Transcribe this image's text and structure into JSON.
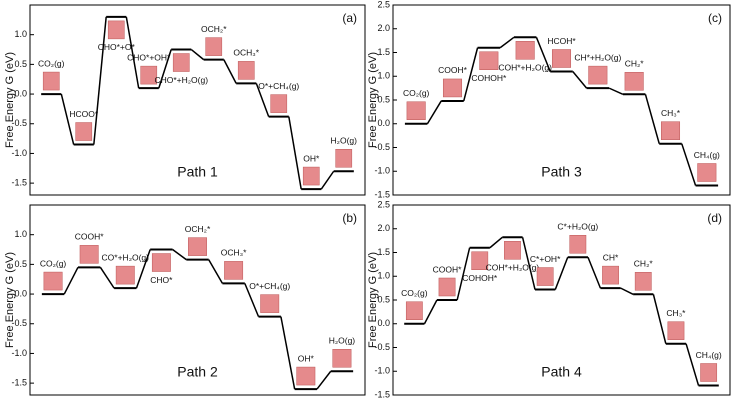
{
  "chart_data": [
    {
      "type": "line",
      "panel": "(a)",
      "annotation": "Path 1",
      "y_label": "Free Energy G (eV)",
      "color": "#000000",
      "categories": [
        "CO₂(g)",
        "HCOO*",
        "CHO*+O*",
        "CHO*+OH*",
        "CHO*+H₂O(g)",
        "OCH₂*",
        "OCH₃*",
        "O*+CH₄(g)",
        "OH*",
        "H₂O(g)"
      ],
      "values": [
        0,
        -0.85,
        1.3,
        0.1,
        0.75,
        0.58,
        0.18,
        -0.38,
        -1.6,
        -1.3
      ],
      "ylim": [
        -1.7,
        1.5
      ],
      "yticks": [
        {
          "value": 1,
          "label": "1.0"
        },
        0.5,
        {
          "value": 0,
          "label": "0.0"
        },
        -0.5,
        {
          "value": -1,
          "label": "-1.0"
        },
        -1.5
      ]
    },
    {
      "type": "line",
      "panel": "(b)",
      "annotation": "Path 2",
      "y_label": "Free Energy G (eV)",
      "color": "#000000",
      "categories": [
        "CO₂(g)",
        "COOH*",
        "CO*+H₂O(g)",
        "CHO*",
        "OCH₂*",
        "OCH₃*",
        "O*+CH₄(g)",
        "OH*",
        "H₂O(g)"
      ],
      "values": [
        0,
        0.45,
        0.1,
        0.75,
        0.58,
        0.18,
        -0.38,
        -1.6,
        -1.3
      ],
      "ylim": [
        -1.7,
        1.5
      ],
      "yticks": [
        {
          "value": 1,
          "label": "1.0"
        },
        0.5,
        {
          "value": 0,
          "label": "0.0"
        },
        -0.5,
        {
          "value": -1,
          "label": "-1.0"
        },
        -1.5
      ]
    },
    {
      "type": "line",
      "panel": "(c)",
      "annotation": "Path 3",
      "y_label": "Free Energy G (eV)",
      "color": "#000000",
      "categories": [
        "CO₂(g)",
        "COOH*",
        "COHOH*",
        "COH*+H₂O(g)",
        "HCOH*",
        "CH*+H₂O(g)",
        "CH₂*",
        "CH₃*",
        "CH₄(g)"
      ],
      "values": [
        0,
        0.48,
        1.6,
        1.82,
        1.1,
        0.75,
        0.62,
        -0.42,
        -1.3
      ],
      "ylim": [
        -1.5,
        2.5
      ],
      "yticks": [
        2.5,
        {
          "value": 2,
          "label": "2.0"
        },
        1.5,
        {
          "value": 1,
          "label": "1.0"
        },
        0.5,
        {
          "value": 0,
          "label": "0.0"
        },
        -0.5,
        {
          "value": -1,
          "label": "-1.0"
        },
        -1.5
      ]
    },
    {
      "type": "line",
      "panel": "(d)",
      "annotation": "Path 4",
      "y_label": "Free Energy G (eV)",
      "color": "#000000",
      "categories": [
        "CO₂(g)",
        "COOH*",
        "COHOH*",
        "COH*+H₂O(g)",
        "C*+OH*",
        "C*+H₂O(g)",
        "CH*",
        "CH₂*",
        "CH₃*",
        "CH₄(g)"
      ],
      "values": [
        0,
        0.5,
        1.6,
        1.82,
        0.72,
        1.4,
        0.75,
        0.62,
        -0.42,
        -1.3
      ],
      "ylim": [
        -1.5,
        2.5
      ],
      "yticks": [
        2.5,
        {
          "value": 2,
          "label": "2.0"
        },
        1.5,
        {
          "value": 1,
          "label": "1.0"
        },
        0.5,
        {
          "value": 0,
          "label": "0.0"
        },
        -0.5,
        {
          "value": -1,
          "label": "-1.0"
        },
        -1.5
      ]
    }
  ]
}
